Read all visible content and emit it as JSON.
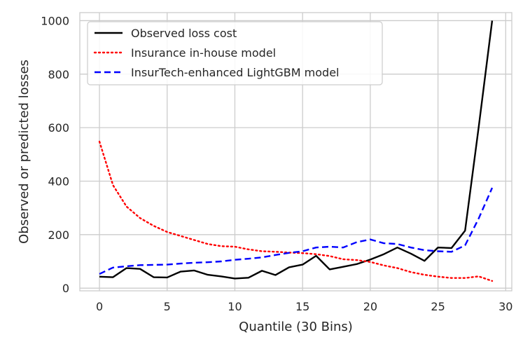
{
  "chart_data": {
    "type": "line",
    "xlabel": "Quantile (30 Bins)",
    "ylabel": "Observed or predicted losses",
    "xlim": [
      -1.45,
      30.45
    ],
    "ylim": [
      -10,
      1030
    ],
    "xticks": [
      0,
      5,
      10,
      15,
      20,
      25,
      30
    ],
    "yticks": [
      0,
      200,
      400,
      600,
      800,
      1000
    ],
    "grid": true,
    "legend_position": "top-left",
    "x": [
      0,
      1,
      2,
      3,
      4,
      5,
      6,
      7,
      8,
      9,
      10,
      11,
      12,
      13,
      14,
      15,
      16,
      17,
      18,
      19,
      20,
      21,
      22,
      23,
      24,
      25,
      26,
      27,
      28,
      29
    ],
    "series": [
      {
        "name": "Observed loss cost",
        "color": "#000000",
        "style": "solid",
        "values": [
          43,
          41,
          75,
          72,
          41,
          40,
          62,
          66,
          50,
          44,
          36,
          39,
          65,
          49,
          78,
          88,
          121,
          70,
          80,
          90,
          107,
          127,
          152,
          129,
          102,
          152,
          150,
          215,
          600,
          1000
        ]
      },
      {
        "name": "Insurance in-house model",
        "color": "#ff0000",
        "style": "dotted",
        "values": [
          548,
          385,
          305,
          262,
          233,
          210,
          195,
          180,
          165,
          157,
          155,
          145,
          138,
          136,
          133,
          131,
          127,
          120,
          108,
          105,
          98,
          85,
          75,
          60,
          50,
          43,
          38,
          38,
          44,
          27
        ]
      },
      {
        "name": "InsurTech-enhanced LightGBM model",
        "color": "#0000ff",
        "style": "dashed",
        "values": [
          53,
          77,
          82,
          86,
          87,
          88,
          92,
          95,
          97,
          100,
          106,
          110,
          115,
          124,
          132,
          138,
          152,
          155,
          152,
          172,
          182,
          168,
          165,
          152,
          142,
          138,
          136,
          160,
          260,
          375
        ]
      }
    ]
  }
}
